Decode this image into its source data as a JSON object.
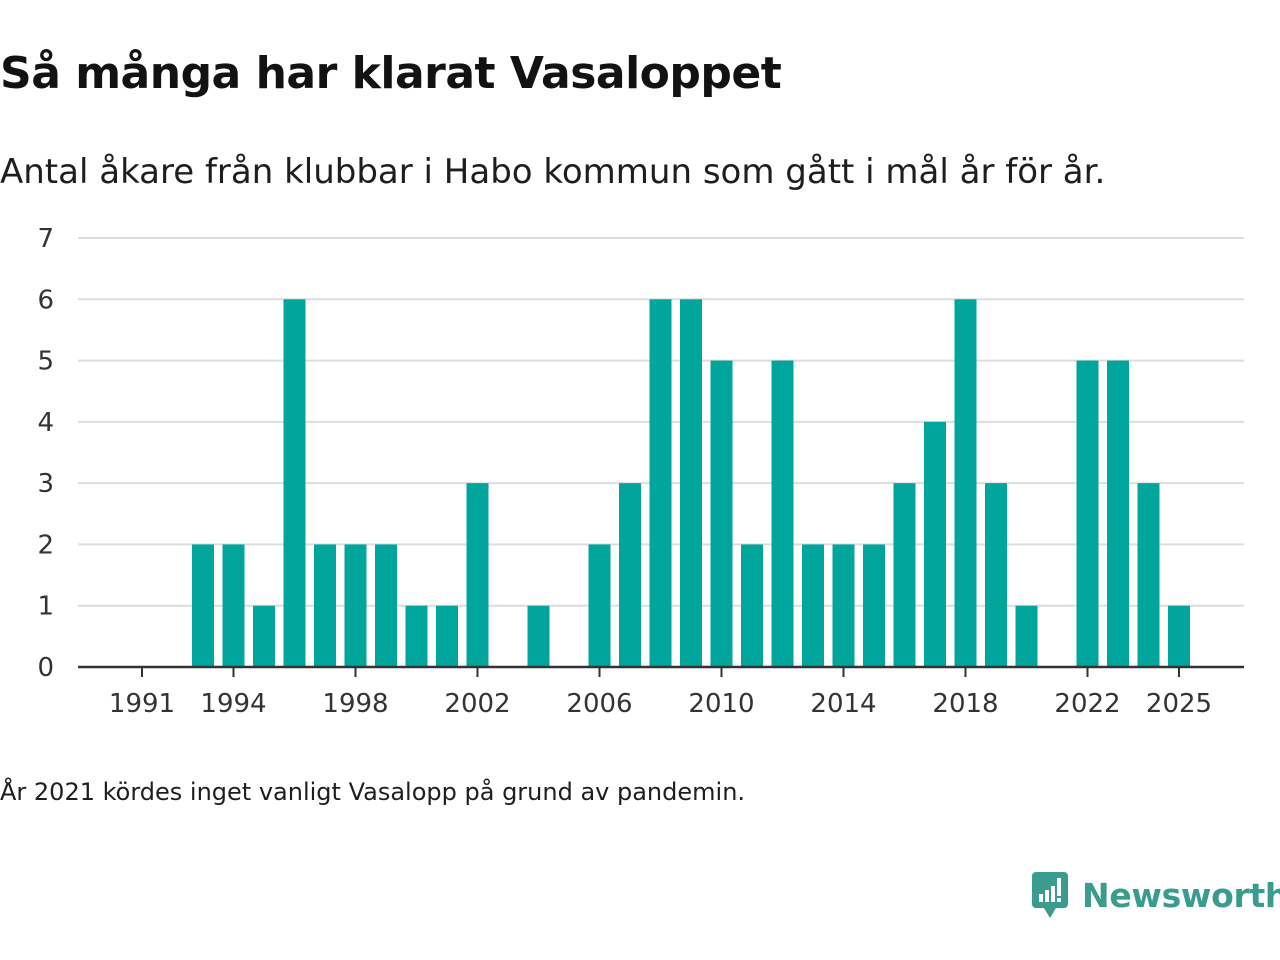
{
  "title": "Så många har klarat Vasaloppet",
  "subtitle": "Antal åkare från klubbar i Habo kommun som gått i mål år för år.",
  "note": "År 2021 kördes inget vanligt Vasalopp på grund av pandemin.",
  "brand": {
    "name": "Newsworthy",
    "color": "#3a9b8f"
  },
  "colors": {
    "bar": "#00a69c",
    "grid": "#dddddd",
    "axis": "#333333",
    "text": "#333333"
  },
  "chart_data": {
    "type": "bar",
    "title": "Så många har klarat Vasaloppet",
    "xlabel": "",
    "ylabel": "",
    "ylim": [
      0,
      7
    ],
    "yticks": [
      "0",
      "1",
      "2",
      "3",
      "4",
      "5",
      "6",
      "7"
    ],
    "xticks": [
      "1991",
      "1994",
      "1998",
      "2002",
      "2006",
      "2010",
      "2014",
      "2018",
      "2022",
      "2025"
    ],
    "grid": true,
    "categories": [
      1991,
      1992,
      1993,
      1994,
      1995,
      1996,
      1997,
      1998,
      1999,
      2000,
      2001,
      2002,
      2003,
      2004,
      2005,
      2006,
      2007,
      2008,
      2009,
      2010,
      2011,
      2012,
      2013,
      2014,
      2015,
      2016,
      2017,
      2018,
      2019,
      2020,
      2021,
      2022,
      2023,
      2024,
      2025
    ],
    "values": [
      0,
      0,
      2,
      2,
      1,
      6,
      2,
      2,
      2,
      1,
      1,
      3,
      0,
      1,
      0,
      2,
      3,
      6,
      6,
      5,
      2,
      5,
      2,
      2,
      2,
      3,
      4,
      6,
      3,
      1,
      0,
      5,
      5,
      3,
      1
    ]
  }
}
